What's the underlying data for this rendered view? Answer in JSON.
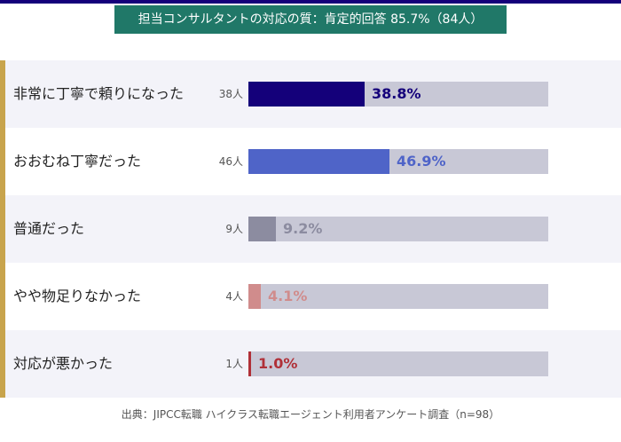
{
  "chart_data": {
    "type": "bar",
    "orientation": "horizontal",
    "title": "担当コンサルタントの対応の質：肯定的回答 85.7%（84人）",
    "categories": [
      "非常に丁寧で頼りになった",
      "おおむね丁寧だった",
      "普通だった",
      "やや物足りなかった",
      "対応が悪かった"
    ],
    "counts": [
      "38人",
      "46人",
      "9人",
      "4人",
      "1人"
    ],
    "values": [
      38.8,
      46.9,
      9.2,
      4.1,
      1.0
    ],
    "value_labels": [
      "38.8%",
      "46.9%",
      "9.2%",
      "4.1%",
      "1.0%"
    ],
    "colors": [
      "#14007a",
      "#4f64c8",
      "#8c8ca0",
      "#d08c8c",
      "#b03038"
    ],
    "xlim": [
      0,
      100
    ],
    "source": "出典：JIPCC転職 ハイクラス転職エージェント利用者アンケート調査（n=98）"
  }
}
